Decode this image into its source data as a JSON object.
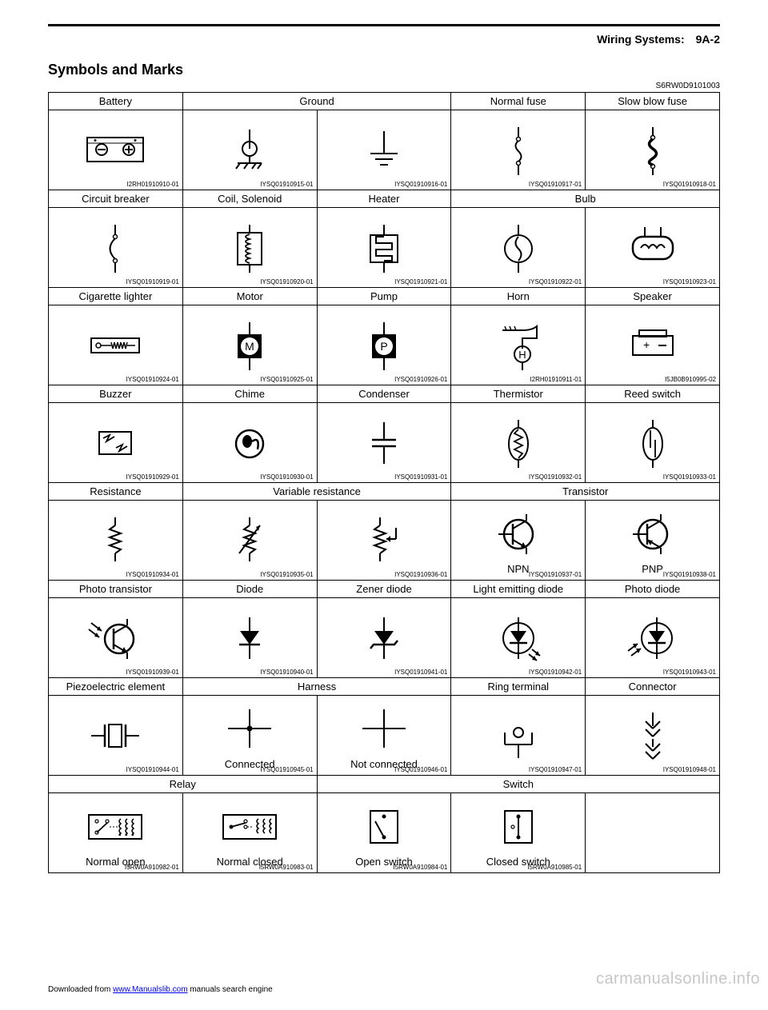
{
  "header": {
    "section": "Wiring Systems:",
    "page": "9A-2"
  },
  "title": "Symbols and Marks",
  "refcode": "S6RW0D9101003",
  "rows": [
    {
      "headers": [
        {
          "label": "Battery",
          "span": 1
        },
        {
          "label": "Ground",
          "span": 2
        },
        {
          "label": "Normal fuse",
          "span": 1
        },
        {
          "label": "Slow blow fuse",
          "span": 1
        }
      ],
      "cells": [
        {
          "svg": "battery",
          "part": "I2RH01910910-01"
        },
        {
          "svg": "ground_chassis",
          "part": "IYSQ01910915-01"
        },
        {
          "svg": "ground_earth",
          "part": "IYSQ01910916-01"
        },
        {
          "svg": "fuse_normal",
          "part": "IYSQ01910917-01"
        },
        {
          "svg": "fuse_slow",
          "part": "IYSQ01910918-01"
        }
      ]
    },
    {
      "headers": [
        {
          "label": "Circuit breaker",
          "span": 1
        },
        {
          "label": "Coil, Solenoid",
          "span": 1
        },
        {
          "label": "Heater",
          "span": 1
        },
        {
          "label": "Bulb",
          "span": 2
        }
      ],
      "cells": [
        {
          "svg": "breaker",
          "part": "IYSQ01910919-01"
        },
        {
          "svg": "coil",
          "part": "IYSQ01910920-01"
        },
        {
          "svg": "heater",
          "part": "IYSQ01910921-01"
        },
        {
          "svg": "bulb1",
          "part": "IYSQ01910922-01"
        },
        {
          "svg": "bulb2",
          "part": "IYSQ01910923-01"
        }
      ]
    },
    {
      "headers": [
        {
          "label": "Cigarette lighter",
          "span": 1
        },
        {
          "label": "Motor",
          "span": 1
        },
        {
          "label": "Pump",
          "span": 1
        },
        {
          "label": "Horn",
          "span": 1
        },
        {
          "label": "Speaker",
          "span": 1
        }
      ],
      "cells": [
        {
          "svg": "lighter",
          "part": "IYSQ01910924-01"
        },
        {
          "svg": "motor",
          "part": "IYSQ01910925-01"
        },
        {
          "svg": "pump",
          "part": "IYSQ01910926-01"
        },
        {
          "svg": "horn",
          "part": "I2RH01910911-01"
        },
        {
          "svg": "speaker",
          "part": "I5JB0B910995-02"
        }
      ]
    },
    {
      "headers": [
        {
          "label": "Buzzer",
          "span": 1
        },
        {
          "label": "Chime",
          "span": 1
        },
        {
          "label": "Condenser",
          "span": 1
        },
        {
          "label": "Thermistor",
          "span": 1
        },
        {
          "label": "Reed switch",
          "span": 1
        }
      ],
      "cells": [
        {
          "svg": "buzzer",
          "part": "IYSQ01910929-01"
        },
        {
          "svg": "chime",
          "part": "IYSQ01910930-01"
        },
        {
          "svg": "condenser",
          "part": "IYSQ01910931-01"
        },
        {
          "svg": "thermistor",
          "part": "IYSQ01910932-01"
        },
        {
          "svg": "reed",
          "part": "IYSQ01910933-01"
        }
      ]
    },
    {
      "headers": [
        {
          "label": "Resistance",
          "span": 1
        },
        {
          "label": "Variable resistance",
          "span": 2
        },
        {
          "label": "Transistor",
          "span": 2
        }
      ],
      "cells": [
        {
          "svg": "resistor",
          "part": "IYSQ01910934-01"
        },
        {
          "svg": "varres1",
          "part": "IYSQ01910935-01"
        },
        {
          "svg": "varres2",
          "part": "IYSQ01910936-01"
        },
        {
          "svg": "npn",
          "part": "IYSQ01910937-01",
          "sublabel": "NPN"
        },
        {
          "svg": "pnp",
          "part": "IYSQ01910938-01",
          "sublabel": "PNP"
        }
      ]
    },
    {
      "headers": [
        {
          "label": "Photo transistor",
          "span": 1
        },
        {
          "label": "Diode",
          "span": 1
        },
        {
          "label": "Zener diode",
          "span": 1
        },
        {
          "label": "Light emitting diode",
          "span": 1
        },
        {
          "label": "Photo diode",
          "span": 1
        }
      ],
      "cells": [
        {
          "svg": "phototrans",
          "part": "IYSQ01910939-01"
        },
        {
          "svg": "diode",
          "part": "IYSQ01910940-01"
        },
        {
          "svg": "zener",
          "part": "IYSQ01910941-01"
        },
        {
          "svg": "led",
          "part": "IYSQ01910942-01"
        },
        {
          "svg": "photodiode",
          "part": "IYSQ01910943-01"
        }
      ]
    },
    {
      "headers": [
        {
          "label": "Piezoelectric element",
          "span": 1
        },
        {
          "label": "Harness",
          "span": 2
        },
        {
          "label": "Ring terminal",
          "span": 1
        },
        {
          "label": "Connector",
          "span": 1
        }
      ],
      "cells": [
        {
          "svg": "piezo",
          "part": "IYSQ01910944-01"
        },
        {
          "svg": "harness_conn",
          "part": "IYSQ01910945-01",
          "sublabel": "Connected"
        },
        {
          "svg": "harness_noconn",
          "part": "IYSQ01910946-01",
          "sublabel": "Not connected"
        },
        {
          "svg": "ring",
          "part": "IYSQ01910947-01"
        },
        {
          "svg": "connector",
          "part": "IYSQ01910948-01"
        }
      ]
    },
    {
      "headers": [
        {
          "label": "Relay",
          "span": 2
        },
        {
          "label": "Switch",
          "span": 3
        }
      ],
      "cells": [
        {
          "svg": "relay_no",
          "part": "I5RW0A910982-01",
          "sublabel": "Normal open"
        },
        {
          "svg": "relay_nc",
          "part": "I5RW0A910983-01",
          "sublabel": "Normal closed"
        },
        {
          "svg": "sw_open",
          "part": "I5RW0A910984-01",
          "sublabel": "Open switch"
        },
        {
          "svg": "sw_closed",
          "part": "I5RW0A910985-01",
          "sublabel": "Closed switch"
        },
        {
          "svg": "blank",
          "part": ""
        }
      ]
    }
  ],
  "footer": {
    "prefix": "Downloaded from ",
    "link_text": "www.Manualslib.com",
    "suffix": " manuals search engine"
  },
  "watermark": "carmanualsonline.info",
  "styling": {
    "stroke": "#000000",
    "stroke_width": 2,
    "text_color": "#000000",
    "background": "#ffffff",
    "font_family": "Arial, Helvetica, sans-serif",
    "header_font_size": 14,
    "title_font_size": 18,
    "cell_header_font_size": 13,
    "partno_font_size": 8
  }
}
